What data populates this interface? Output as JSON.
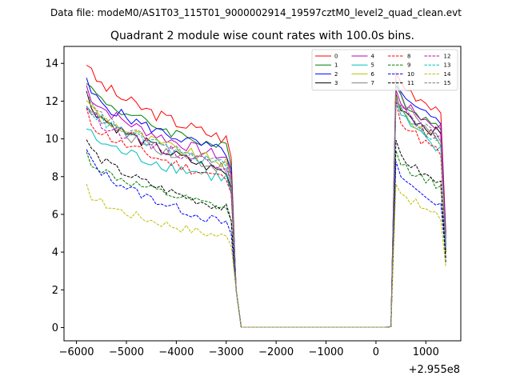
{
  "chart_data": {
    "type": "line",
    "suptitle": "Data file: modeM0/AS1T03_115T01_9000002914_19597cztM0_level2_quad_clean.evt",
    "title": "Quadrant 2 module wise count rates with 100.0s bins.",
    "offset_text": "+2.955e8",
    "xlim": [
      -6250,
      1700
    ],
    "ylim": [
      -0.7,
      14.9
    ],
    "x_ticks": [
      -6000,
      -5000,
      -4000,
      -3000,
      -2000,
      -1000,
      0,
      1000
    ],
    "x_tick_labels": [
      "−6000",
      "−5000",
      "−4000",
      "−3000",
      "−2000",
      "−1000",
      "0",
      "1000"
    ],
    "y_ticks": [
      0,
      2,
      4,
      6,
      8,
      10,
      12,
      14
    ],
    "y_tick_labels": [
      "0",
      "2",
      "4",
      "6",
      "8",
      "10",
      "12",
      "14"
    ],
    "series": [
      {
        "name": "0",
        "color": "#ff0000",
        "dash": false,
        "start": 14.1,
        "seg1": 10.0,
        "peak": 13.5,
        "seg2": 11.6,
        "end": 5.0,
        "noise": 0.35
      },
      {
        "name": "1",
        "color": "#008000",
        "dash": false,
        "start": 13.2,
        "seg1": 9.5,
        "peak": 12.8,
        "seg2": 10.6,
        "end": 4.5,
        "noise": 0.3
      },
      {
        "name": "2",
        "color": "#0000ff",
        "dash": false,
        "start": 13.0,
        "seg1": 9.3,
        "peak": 12.8,
        "seg2": 10.8,
        "end": 4.7,
        "noise": 0.3
      },
      {
        "name": "3",
        "color": "#000000",
        "dash": false,
        "start": 12.4,
        "seg1": 8.2,
        "peak": 12.3,
        "seg2": 10.2,
        "end": 4.0,
        "noise": 0.3
      },
      {
        "name": "4",
        "color": "#bf00bf",
        "dash": false,
        "start": 12.8,
        "seg1": 9.0,
        "peak": 12.5,
        "seg2": 10.6,
        "end": 4.4,
        "noise": 0.3
      },
      {
        "name": "5",
        "color": "#00bfbf",
        "dash": false,
        "start": 10.6,
        "seg1": 7.9,
        "peak": 12.0,
        "seg2": 9.3,
        "end": 4.3,
        "noise": 0.35
      },
      {
        "name": "6",
        "color": "#bfbf00",
        "dash": false,
        "start": 12.2,
        "seg1": 8.7,
        "peak": 12.1,
        "seg2": 9.9,
        "end": 3.9,
        "noise": 0.3
      },
      {
        "name": "7",
        "color": "#808080",
        "dash": false,
        "start": 12.0,
        "seg1": 8.4,
        "peak": 13.0,
        "seg2": 10.0,
        "end": 4.2,
        "noise": 0.3
      },
      {
        "name": "8",
        "color": "#ff0000",
        "dash": true,
        "start": 11.4,
        "seg1": 7.9,
        "peak": 11.8,
        "seg2": 9.2,
        "end": 4.1,
        "noise": 0.3
      },
      {
        "name": "9",
        "color": "#008000",
        "dash": true,
        "start": 9.2,
        "seg1": 6.3,
        "peak": 9.2,
        "seg2": 7.5,
        "end": 4.0,
        "noise": 0.25
      },
      {
        "name": "10",
        "color": "#0000ff",
        "dash": true,
        "start": 9.4,
        "seg1": 5.5,
        "peak": 8.6,
        "seg2": 6.5,
        "end": 3.7,
        "noise": 0.25
      },
      {
        "name": "11",
        "color": "#000000",
        "dash": true,
        "start": 10.0,
        "seg1": 6.3,
        "peak": 9.7,
        "seg2": 7.6,
        "end": 3.4,
        "noise": 0.25
      },
      {
        "name": "12",
        "color": "#bf00bf",
        "dash": true,
        "start": 11.8,
        "seg1": 8.6,
        "peak": 12.2,
        "seg2": 9.9,
        "end": 4.3,
        "noise": 0.3
      },
      {
        "name": "13",
        "color": "#00bfbf",
        "dash": true,
        "start": 12.0,
        "seg1": 8.6,
        "peak": 12.0,
        "seg2": 9.8,
        "end": 4.2,
        "noise": 0.3
      },
      {
        "name": "14",
        "color": "#bfbf00",
        "dash": true,
        "start": 7.4,
        "seg1": 4.8,
        "peak": 7.8,
        "seg2": 5.8,
        "end": 3.2,
        "noise": 0.25
      },
      {
        "name": "15",
        "color": "#808080",
        "dash": true,
        "start": 12.3,
        "seg1": 8.6,
        "peak": 12.4,
        "seg2": 10.0,
        "end": 4.2,
        "noise": 0.3
      }
    ],
    "legend_loc": "upper right",
    "legend_ncol": 4
  }
}
